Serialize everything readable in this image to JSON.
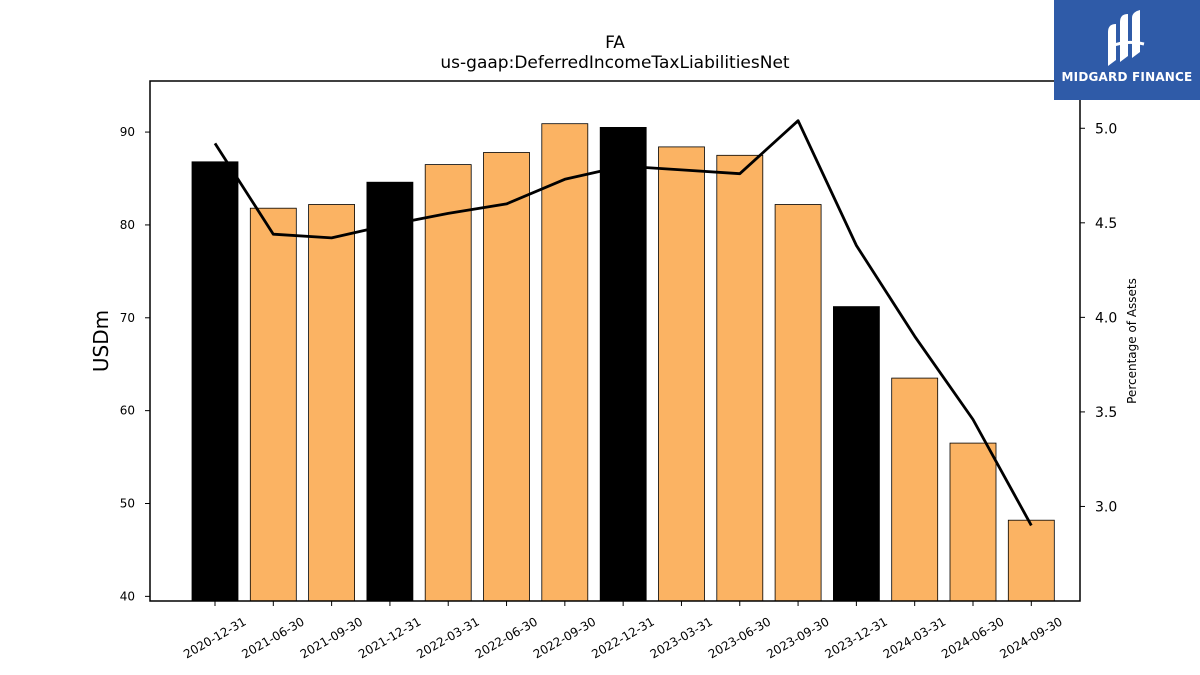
{
  "chart_data": {
    "type": "bar",
    "title": "FA",
    "subtitle": "us-gaap:DeferredIncomeTaxLiabilitiesNet",
    "ylabel": "USDm",
    "y2label": "Percentage of Assets",
    "ylim": [
      39.5,
      95.5
    ],
    "y2lim": [
      2.5,
      5.25
    ],
    "yticks": [
      40,
      50,
      60,
      70,
      80,
      90
    ],
    "y2ticks": [
      "3.0",
      "3.5",
      "4.0",
      "4.5",
      "5.0"
    ],
    "categories": [
      "2020-12-31",
      "2021-06-30",
      "2021-09-30",
      "2021-12-31",
      "2022-03-31",
      "2022-06-30",
      "2022-09-30",
      "2022-12-31",
      "2023-03-31",
      "2023-06-30",
      "2023-09-30",
      "2023-12-31",
      "2024-03-31",
      "2024-06-30",
      "2024-09-30"
    ],
    "series": [
      {
        "values": [
          86.8,
          81.8,
          82.2,
          84.6,
          86.5,
          87.8,
          90.9,
          90.5,
          88.4,
          87.5,
          82.2,
          71.2,
          63.5,
          56.5,
          48.2
        ],
        "kind": [
          "annual",
          "quarter",
          "quarter",
          "annual",
          "quarter",
          "quarter",
          "quarter",
          "annual",
          "quarter",
          "quarter",
          "quarter",
          "annual",
          "quarter",
          "quarter",
          "quarter"
        ]
      },
      {
        "axis": "right",
        "values": [
          4.92,
          4.44,
          4.42,
          4.49,
          4.55,
          4.6,
          4.73,
          4.8,
          4.78,
          4.76,
          5.04,
          4.38,
          3.9,
          3.46,
          2.9
        ]
      }
    ],
    "colors": {
      "annual": "#000000",
      "quarter": "#fbb363",
      "line": "#000000",
      "edge": "#000000"
    }
  },
  "logo": {
    "text": "MIDGARD FINANCE",
    "background": "#2f5ba8"
  }
}
